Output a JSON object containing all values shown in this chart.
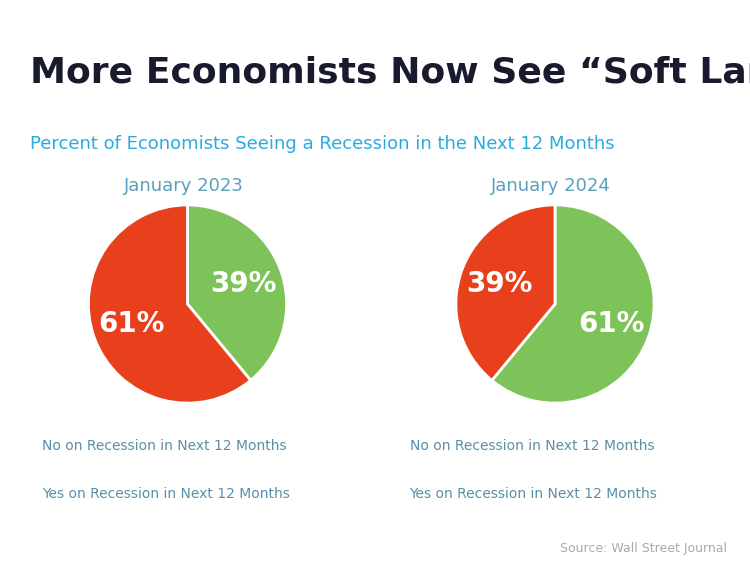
{
  "title": "More Economists Now See “Soft Landing”",
  "subtitle": "Percent of Economists Seeing a Recession in the Next 12 Months",
  "background_color": "#ffffff",
  "top_bar_color": "#29abe2",
  "title_color": "#1a1a2e",
  "subtitle_color": "#29abe2",
  "label_color": "#5a8faa",
  "source_text": "Source: Wall Street Journal",
  "source_color": "#aaaaaa",
  "charts": [
    {
      "title": "January 2023",
      "title_color": "#5a9fbb",
      "values": [
        39,
        61
      ],
      "colors": [
        "#7dc35a",
        "#e8401c"
      ],
      "labels": [
        "39%",
        "61%"
      ],
      "startangle": 90
    },
    {
      "title": "January 2024",
      "title_color": "#5a9fbb",
      "values": [
        61,
        39
      ],
      "colors": [
        "#7dc35a",
        "#e8401c"
      ],
      "labels": [
        "61%",
        "39%"
      ],
      "startangle": 90
    }
  ],
  "legend_items": [
    {
      "label": "No on Recession in Next 12 Months",
      "color": "#7dc35a"
    },
    {
      "label": "Yes on Recession in Next 12 Months",
      "color": "#e8401c"
    }
  ],
  "pct_fontsize": 20,
  "pct_color": "#ffffff",
  "chart_title_fontsize": 13,
  "legend_fontsize": 10,
  "title_fontsize": 26,
  "subtitle_fontsize": 13
}
